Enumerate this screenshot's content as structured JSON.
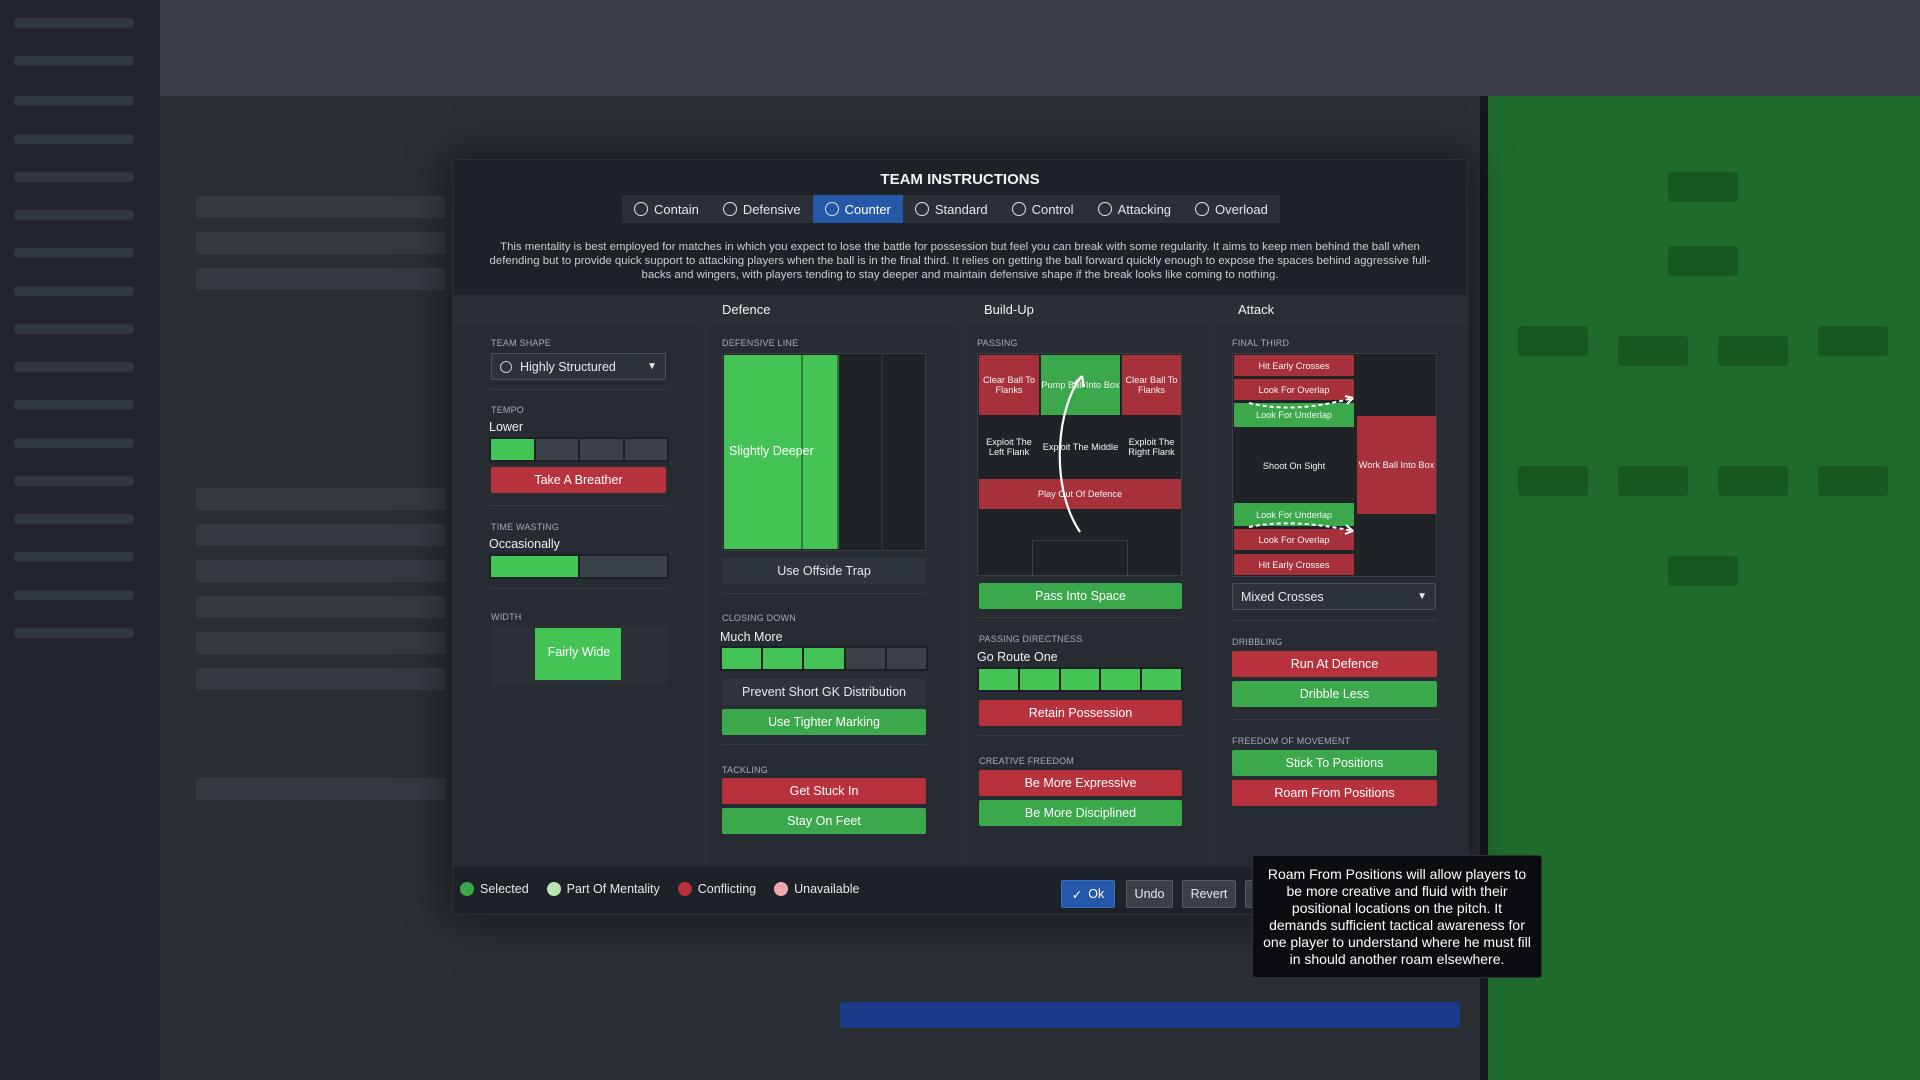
{
  "modal": {
    "title": "TEAM INSTRUCTIONS",
    "tabs": [
      {
        "label": "Contain",
        "active": false
      },
      {
        "label": "Defensive",
        "active": false
      },
      {
        "label": "Counter",
        "active": true
      },
      {
        "label": "Standard",
        "active": false
      },
      {
        "label": "Control",
        "active": false
      },
      {
        "label": "Attacking",
        "active": false
      },
      {
        "label": "Overload",
        "active": false
      }
    ],
    "description": "This mentality is best employed for matches in which you expect to lose the battle for possession but feel you can break with some regularity.  It aims to keep men behind the ball when defending but to provide quick support to attacking players when the ball is in the final third. It relies on getting the ball forward quickly enough to expose the spaces behind aggressive full-backs and wingers, with players tending to stay deeper and maintain defensive shape if the break looks like coming to nothing."
  },
  "general": {
    "team_shape_label": "TEAM SHAPE",
    "team_shape_value": "Highly Structured",
    "tempo_label": "TEMPO",
    "tempo_value": "Lower",
    "tempo_level": 0.25,
    "take_breather": "Take A Breather",
    "time_wasting_label": "TIME WASTING",
    "time_wasting_value": "Occasionally",
    "time_wasting_level": 0.55,
    "width_label": "WIDTH",
    "width_value": "Fairly Wide"
  },
  "defence": {
    "header": "Defence",
    "line_label": "DEFENSIVE LINE",
    "line_value": "Slightly Deeper",
    "offside": "Use Offside Trap",
    "closing_label": "CLOSING DOWN",
    "closing_value": "Much More",
    "closing_level": 0.6,
    "prevent_gk": "Prevent Short GK Distribution",
    "tighter_marking": "Use Tighter Marking",
    "tackling_label": "TACKLING",
    "get_stuck_in": "Get Stuck In",
    "stay_on_feet": "Stay On Feet"
  },
  "buildup": {
    "header": "Build-Up",
    "passing_label": "PASSING",
    "cells": {
      "clear_left": "Clear Ball To Flanks",
      "pump_ball": "Pump Ball Into Box",
      "clear_right": "Clear Ball To Flanks",
      "exploit_left": "Exploit The Left Flank",
      "exploit_middle": "Exploit The Middle",
      "exploit_right": "Exploit The Right Flank",
      "play_out": "Play Out Of Defence"
    },
    "pass_into_space": "Pass Into Space",
    "directness_label": "PASSING DIRECTNESS",
    "directness_value": "Go Route One",
    "directness_level": 0.9,
    "retain": "Retain Possession",
    "creative_label": "CREATIVE FREEDOM",
    "expressive": "Be More Expressive",
    "disciplined": "Be More Disciplined"
  },
  "attack": {
    "header": "Attack",
    "final_third_label": "FINAL THIRD",
    "cells": {
      "hit_early_top": "Hit Early Crosses",
      "overlap_top": "Look For Overlap",
      "underlap_top": "Look For Underlap",
      "shoot": "Shoot On Sight",
      "work_ball": "Work Ball Into Box",
      "underlap_bottom": "Look For Underlap",
      "overlap_bottom": "Look For Overlap",
      "hit_early_bottom": "Hit Early Crosses"
    },
    "crosses_value": "Mixed Crosses",
    "dribbling_label": "DRIBBLING",
    "run_at_defence": "Run At Defence",
    "dribble_less": "Dribble Less",
    "movement_label": "FREEDOM OF MOVEMENT",
    "stick": "Stick To Positions",
    "roam": "Roam From Positions"
  },
  "legend": {
    "selected": "Selected",
    "part_of_mentality": "Part Of Mentality",
    "conflicting": "Conflicting",
    "unavailable": "Unavailable",
    "colors": {
      "selected": "#3aa84b",
      "part": "#b9e6b0",
      "conflicting": "#b8323d",
      "unavailable": "#f0a6ad"
    }
  },
  "footer": {
    "ok": "Ok",
    "undo": "Undo",
    "revert": "Revert"
  },
  "tooltip": "Roam From Positions will allow players to be more creative and fluid with their positional locations on the pitch. It demands sufficient tactical awareness for one player to understand where he must fill in should another roam elsewhere."
}
